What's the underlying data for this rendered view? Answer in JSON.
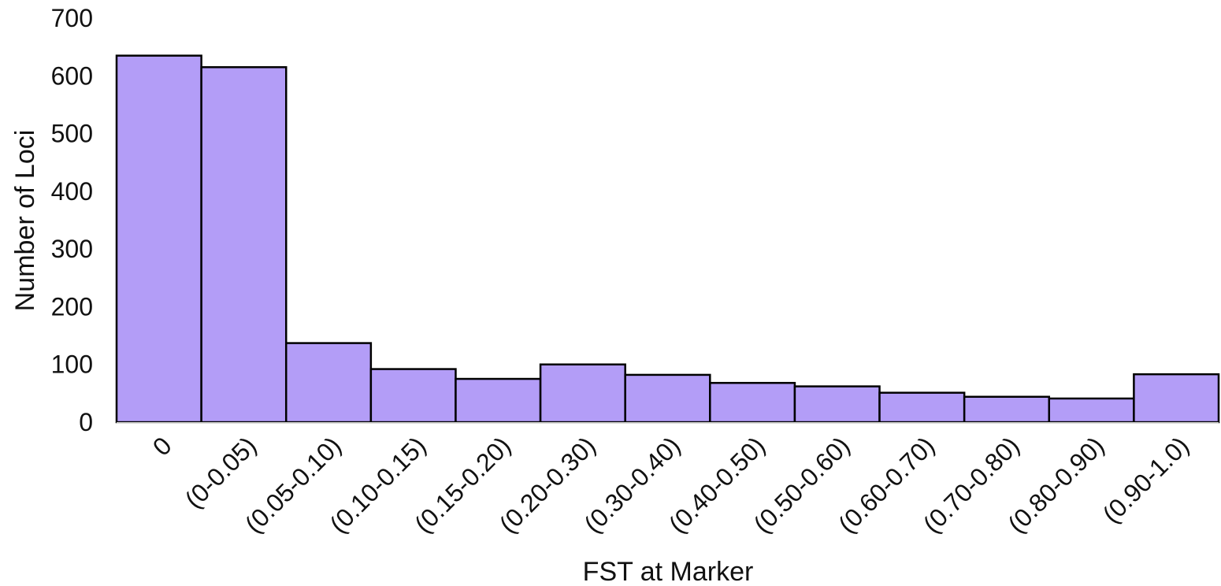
{
  "chart_data": {
    "type": "bar",
    "title": "",
    "xlabel": "FST at Marker",
    "ylabel": "Number of Loci",
    "categories": [
      "0",
      "(0-0.05)",
      "(0.05-0.10)",
      "(0.10-0.15)",
      "(0.15-0.20)",
      "(0.20-0.30)",
      "(0.30-0.40)",
      "(0.40-0.50)",
      "(0.50-0.60)",
      "(0.60-0.70)",
      "(0.70-0.80)",
      "(0.80-0.90)",
      "(0.90-1.0)"
    ],
    "values": [
      635,
      615,
      137,
      92,
      75,
      100,
      82,
      68,
      62,
      51,
      44,
      41,
      83
    ],
    "ylim": [
      0,
      700
    ],
    "yticks": [
      "0",
      "100",
      "200",
      "300",
      "400",
      "500",
      "600",
      "700"
    ],
    "grid": false,
    "legend": "none",
    "colors": {
      "bar_fill": "#b39df7",
      "bar_stroke": "#000000",
      "baseline": "#d8d8d8"
    }
  }
}
